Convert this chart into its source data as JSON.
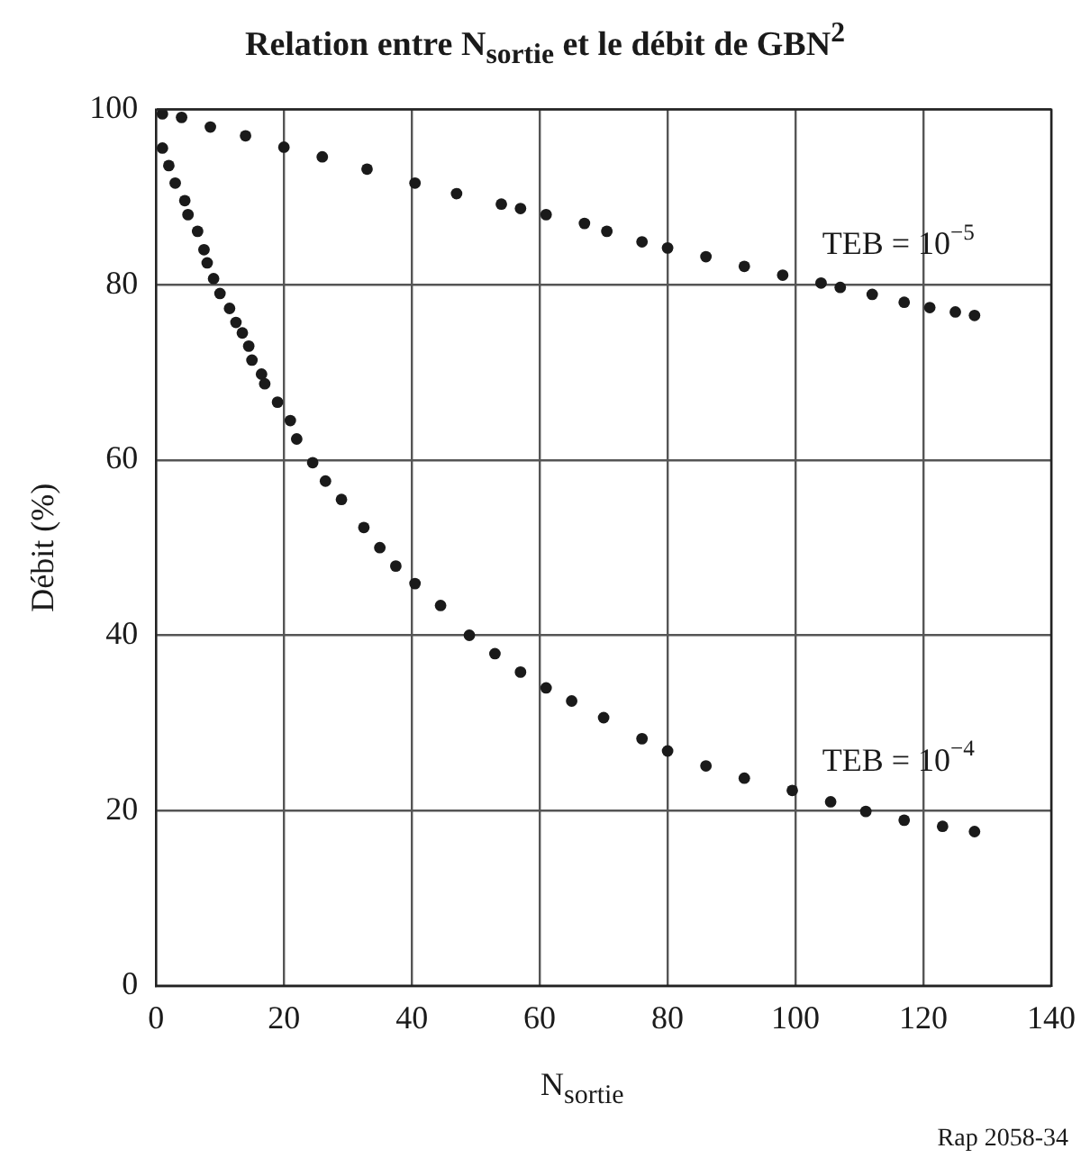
{
  "chart_data": {
    "type": "scatter",
    "title": "Relation entre N$_{sortie}$ et le débit de GBN$^{2}$",
    "xlabel": "N$_{sortie}$",
    "ylabel": "Débit (%)",
    "xlim": [
      0,
      140
    ],
    "xticks": [
      0,
      20,
      40,
      60,
      80,
      100,
      120,
      140
    ],
    "ylim": [
      0,
      100
    ],
    "yticks": [
      0,
      20,
      40,
      60,
      80,
      100
    ],
    "grid": true,
    "marker": "circle",
    "series": [
      {
        "name": "TEB = 10$^{−5}$",
        "color": "#1a1a1a",
        "x": [
          1,
          4,
          8.5,
          14,
          20,
          26,
          33,
          40.5,
          47,
          54,
          57,
          61,
          67,
          70.5,
          76,
          80,
          86,
          92,
          98,
          104,
          107,
          112,
          117,
          121,
          125,
          128
        ],
        "values": [
          99.5,
          99.1,
          98,
          97,
          95.7,
          94.6,
          93.2,
          91.6,
          90.4,
          89.2,
          88.7,
          88,
          87,
          86.1,
          84.9,
          84.2,
          83.2,
          82.1,
          81.1,
          80.2,
          79.7,
          78.9,
          78,
          77.4,
          76.9,
          76.5
        ]
      },
      {
        "name": "TEB = 10$^{−4}$",
        "color": "#1a1a1a",
        "x": [
          1,
          2,
          3,
          4.5,
          5,
          6.5,
          7.5,
          8,
          9,
          10,
          11.5,
          12.5,
          13.5,
          14.5,
          15,
          16.5,
          17,
          19,
          21,
          22,
          24.5,
          26.5,
          29,
          32.5,
          35,
          37.5,
          40.5,
          44.5,
          49,
          53,
          57,
          61,
          65,
          70,
          76,
          80,
          86,
          92,
          99.5,
          105.5,
          111,
          117,
          123,
          128
        ],
        "values": [
          95.6,
          93.6,
          91.6,
          89.6,
          88,
          86.1,
          84,
          82.5,
          80.7,
          79,
          77.3,
          75.7,
          74.5,
          73,
          71.4,
          69.8,
          68.7,
          66.6,
          64.5,
          62.4,
          59.7,
          57.6,
          55.5,
          52.3,
          50,
          47.9,
          45.9,
          43.4,
          40,
          37.9,
          35.8,
          34,
          32.5,
          30.6,
          28.2,
          26.8,
          25.1,
          23.7,
          22.3,
          21,
          19.9,
          18.9,
          18.2,
          17.6
        ]
      }
    ],
    "annotations": [
      "Rap 2058-34"
    ]
  }
}
